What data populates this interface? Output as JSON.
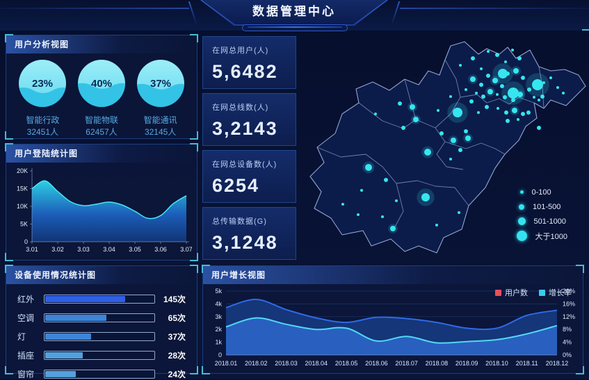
{
  "header": {
    "title": "数据管理中心"
  },
  "panels": {
    "user_analysis": {
      "title": "用户分析视图"
    },
    "login_stats": {
      "title": "用户登陆统计图"
    },
    "device_usage": {
      "title": "设备使用情况统计图"
    },
    "user_growth": {
      "title": "用户增长视图"
    }
  },
  "gauges": [
    {
      "value": 23,
      "percent": "23%",
      "label": "智能行政",
      "count": "32451人"
    },
    {
      "value": 40,
      "percent": "40%",
      "label": "智能物联",
      "count": "62457人"
    },
    {
      "value": 37,
      "percent": "37%",
      "label": "智能通讯",
      "count": "32145人"
    }
  ],
  "kpi_cards": [
    {
      "label": "在网总用户(人)",
      "value": "5,6482"
    },
    {
      "label": "在网总线数(人)",
      "value": "3,2143"
    },
    {
      "label": "在网总设备数(人)",
      "value": "6254"
    },
    {
      "label": "总传输数据(G)",
      "value": "3,1248"
    }
  ],
  "chart_data": [
    {
      "id": "login_area",
      "type": "area",
      "title": "用户登陆统计图",
      "x": [
        3.01,
        3.015,
        3.02,
        3.025,
        3.03,
        3.035,
        3.04,
        3.045,
        3.05,
        3.055,
        3.06,
        3.065,
        3.07
      ],
      "values": [
        15000,
        17200,
        14200,
        11300,
        10200,
        10600,
        11200,
        10400,
        8600,
        6600,
        7400,
        10800,
        13000
      ],
      "x_ticks": [
        "3.01",
        "3.02",
        "3.03",
        "3.04",
        "3.05",
        "3.06",
        "3.07"
      ],
      "y_ticks": [
        "0",
        "5K",
        "10K",
        "15K",
        "20K"
      ],
      "xlim": [
        3.01,
        3.07
      ],
      "ylim": [
        0,
        20000
      ],
      "grid": false,
      "colors": {
        "line": "#49e6f5",
        "fill_top": "#2ed9ec",
        "fill_mid": "#1e66c8",
        "fill_bottom": "#123a80"
      }
    },
    {
      "id": "device_bars",
      "type": "bar",
      "title": "设备使用情况统计图",
      "categories": [
        "红外",
        "空调",
        "灯",
        "插座",
        "窗帘"
      ],
      "values": [
        145,
        65,
        37,
        28,
        24
      ],
      "value_labels": [
        "145次",
        "65次",
        "37次",
        "28次",
        "24次"
      ],
      "fill_pct": [
        73,
        56,
        42,
        34,
        28
      ],
      "bar_colors": [
        "#2f5fe8",
        "#3d85d8",
        "#3d85d8",
        "#53a0dc",
        "#53a0dc"
      ]
    },
    {
      "id": "growth_dual",
      "type": "area",
      "title": "用户增长视图",
      "categories": [
        "2018.01",
        "2018.02",
        "2018.03",
        "2018.04",
        "2018.05",
        "2018.06",
        "2018.07",
        "2018.08",
        "2018.09",
        "2018.10",
        "2018.11",
        "2018.12"
      ],
      "series": [
        {
          "name": "用户数",
          "axis": "left",
          "values": [
            3700,
            4350,
            3550,
            2900,
            2550,
            2950,
            2850,
            2550,
            2100,
            2100,
            3100,
            3500
          ],
          "line_color": "#2e6ae8",
          "fill_color": "#17397e"
        },
        {
          "name": "增长率",
          "axis": "right",
          "values": [
            8.8,
            11.6,
            9.6,
            8.0,
            8.4,
            4.4,
            5.8,
            3.8,
            4.2,
            4.8,
            6.6,
            9.2
          ],
          "line_color": "#52d8f5",
          "fill_color": "#2a63c4"
        }
      ],
      "left_ticks": [
        "0",
        "1k",
        "2k",
        "3k",
        "4k",
        "5k"
      ],
      "right_ticks": [
        "0%",
        "4%",
        "8%",
        "12%",
        "16%",
        "20%"
      ],
      "ylim_left": [
        0,
        5000
      ],
      "ylim_right": [
        0,
        20
      ],
      "grid": true,
      "legend_position": "top-right",
      "legend": [
        {
          "label": "用户数",
          "swatch_color": "#e8505e"
        },
        {
          "label": "增长率",
          "swatch_color": "#38cdea"
        }
      ]
    }
  ],
  "map": {
    "dot_color": "#35e6f0",
    "legend": [
      {
        "label": "0-100",
        "size": 5
      },
      {
        "label": "101-500",
        "size": 8
      },
      {
        "label": "501-1000",
        "size": 11
      },
      {
        "label": "大于1000",
        "size": 15
      }
    ],
    "points": [
      [
        293,
        62,
        7
      ],
      [
        343,
        78,
        8
      ],
      [
        308,
        90,
        8
      ],
      [
        228,
        118,
        7
      ],
      [
        100,
        197,
        5
      ],
      [
        182,
        240,
        6
      ],
      [
        163,
        110,
        4
      ],
      [
        185,
        175,
        5
      ],
      [
        168,
        128,
        4
      ],
      [
        222,
        158,
        4
      ],
      [
        243,
        155,
        4
      ],
      [
        275,
        88,
        4
      ],
      [
        282,
        72,
        4
      ],
      [
        312,
        58,
        4
      ],
      [
        318,
        92,
        4
      ],
      [
        310,
        115,
        4
      ],
      [
        135,
        285,
        4
      ],
      [
        250,
        70,
        4
      ],
      [
        205,
        148,
        3
      ],
      [
        125,
        215,
        3
      ],
      [
        350,
        95,
        3
      ],
      [
        145,
        105,
        3
      ],
      [
        150,
        140,
        3
      ],
      [
        250,
        40,
        3
      ],
      [
        285,
        35,
        3
      ],
      [
        317,
        40,
        3
      ],
      [
        262,
        78,
        3
      ],
      [
        272,
        65,
        3
      ],
      [
        292,
        80,
        3
      ],
      [
        300,
        62,
        3
      ],
      [
        322,
        68,
        3
      ],
      [
        331,
        85,
        3
      ],
      [
        308,
        100,
        3
      ],
      [
        296,
        96,
        3
      ],
      [
        265,
        95,
        3
      ],
      [
        248,
        102,
        3
      ],
      [
        322,
        120,
        3
      ],
      [
        298,
        118,
        3
      ],
      [
        270,
        110,
        3
      ],
      [
        300,
        130,
        3
      ],
      [
        330,
        118,
        3
      ],
      [
        240,
        145,
        3
      ],
      [
        232,
        172,
        3
      ],
      [
        345,
        140,
        3
      ],
      [
        110,
        120,
        2
      ],
      [
        200,
        115,
        2
      ],
      [
        218,
        95,
        2
      ],
      [
        232,
        50,
        2
      ],
      [
        262,
        55,
        2
      ],
      [
        272,
        30,
        2
      ],
      [
        297,
        45,
        2
      ],
      [
        307,
        28,
        2
      ],
      [
        338,
        96,
        2
      ],
      [
        285,
        92,
        2
      ],
      [
        255,
        90,
        2
      ],
      [
        240,
        85,
        2
      ],
      [
        352,
        75,
        2
      ],
      [
        362,
        68,
        2
      ],
      [
        372,
        82,
        2
      ],
      [
        345,
        100,
        2
      ],
      [
        286,
        112,
        2
      ],
      [
        258,
        118,
        2
      ],
      [
        315,
        128,
        2
      ],
      [
        218,
        185,
        2
      ],
      [
        90,
        230,
        2
      ],
      [
        140,
        245,
        2
      ],
      [
        120,
        268,
        2
      ],
      [
        85,
        265,
        2
      ],
      [
        63,
        250,
        2
      ],
      [
        198,
        280,
        2
      ],
      [
        230,
        262,
        2
      ],
      [
        380,
        90,
        2
      ]
    ]
  },
  "colors": {
    "accent_cyan": "#43bed6",
    "panel_border": "#1d3e7e",
    "gauge_fill_top": "#9ceef8",
    "gauge_fill_bottom": "#63d8ef",
    "gauge_wave": "#2cc0e4",
    "gauge_text": "#0a2a56"
  }
}
